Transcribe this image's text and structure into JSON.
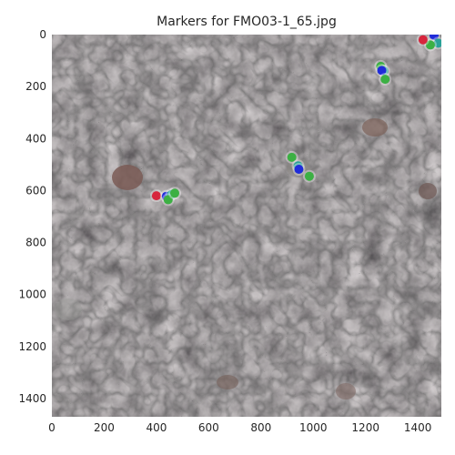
{
  "chart_data": {
    "type": "scatter",
    "title": "Markers for FMO03-1_65.jpg",
    "xlabel": "",
    "ylabel": "",
    "xlim": [
      0,
      1490
    ],
    "ylim": [
      1470,
      0
    ],
    "x_ticks": [
      0,
      200,
      400,
      600,
      800,
      1000,
      1200,
      1400
    ],
    "y_ticks": [
      0,
      200,
      400,
      600,
      800,
      1000,
      1200,
      1400
    ],
    "grid": false,
    "background": "aerial photo of dark grey volcanic rock surface",
    "markers": [
      {
        "x": 1462,
        "y": 3,
        "color": "#1f2bd9"
      },
      {
        "x": 1478,
        "y": 33,
        "color": "#2aa198"
      },
      {
        "x": 1448,
        "y": 40,
        "color": "#3cb043"
      },
      {
        "x": 1420,
        "y": 20,
        "color": "#d7263d"
      },
      {
        "x": 1258,
        "y": 122,
        "color": "#3cb043"
      },
      {
        "x": 1270,
        "y": 140,
        "color": "#2aa198"
      },
      {
        "x": 1262,
        "y": 138,
        "color": "#1f2bd9"
      },
      {
        "x": 1275,
        "y": 172,
        "color": "#3cb043"
      },
      {
        "x": 918,
        "y": 472,
        "color": "#3cb043"
      },
      {
        "x": 942,
        "y": 505,
        "color": "#2aa198"
      },
      {
        "x": 945,
        "y": 518,
        "color": "#1f2bd9"
      },
      {
        "x": 985,
        "y": 545,
        "color": "#3cb043"
      },
      {
        "x": 400,
        "y": 620,
        "color": "#d7263d"
      },
      {
        "x": 438,
        "y": 622,
        "color": "#1f2bd9"
      },
      {
        "x": 458,
        "y": 615,
        "color": "#2aa198"
      },
      {
        "x": 445,
        "y": 635,
        "color": "#3cb043"
      },
      {
        "x": 470,
        "y": 610,
        "color": "#3cb043"
      }
    ]
  }
}
